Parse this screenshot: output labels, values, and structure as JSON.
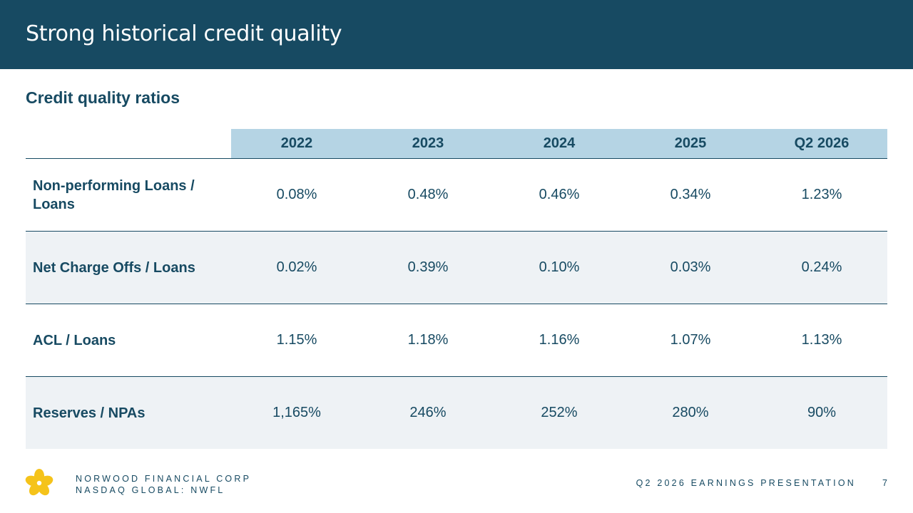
{
  "header": {
    "title": "Strong historical credit quality"
  },
  "section": {
    "title": "Credit quality ratios"
  },
  "table": {
    "columns": [
      "2022",
      "2023",
      "2024",
      "2025",
      "Q2 2026"
    ],
    "rows": [
      {
        "label": "Non-performing Loans / Loans",
        "values": [
          "0.08%",
          "0.48%",
          "0.46%",
          "0.34%",
          "1.23%"
        ]
      },
      {
        "label": "Net Charge Offs / Loans",
        "values": [
          "0.02%",
          "0.39%",
          "0.10%",
          "0.03%",
          "0.24%"
        ]
      },
      {
        "label": "ACL / Loans",
        "values": [
          "1.15%",
          "1.18%",
          "1.16%",
          "1.07%",
          "1.13%"
        ]
      },
      {
        "label": "Reserves / NPAs",
        "values": [
          "1,165%",
          "246%",
          "252%",
          "280%",
          "90%"
        ]
      }
    ]
  },
  "footer": {
    "company_name": "NORWOOD FINANCIAL CORP",
    "exchange": "NASDAQ GLOBAL: NWFL",
    "presentation": "Q2 2026 EARNINGS PRESENTATION",
    "page_number": "7"
  },
  "colors": {
    "brand_navy": "#174a62",
    "header_cell": "#b5d4e4",
    "row_shade": "#eef2f5",
    "logo_yellow": "#f5c31a"
  },
  "icons": {
    "logo": "norwood-flower-logo"
  }
}
